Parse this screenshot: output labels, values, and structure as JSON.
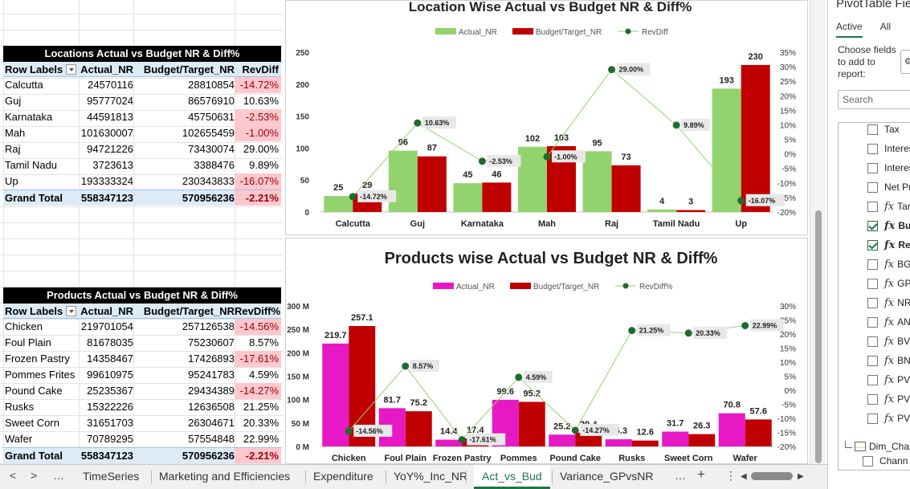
{
  "pivot1": {
    "title": "Locations Actual vs Budget NR & Diff%",
    "headers": {
      "row_labels": "Row Labels",
      "actual": "Actual_NR",
      "budget": "Budget/Target_NR",
      "diff": "RevDiff"
    },
    "rows": [
      {
        "label": "Calcutta",
        "actual": "24570116",
        "budget": "28810854",
        "diff": "-14.72%",
        "neg": true
      },
      {
        "label": "Guj",
        "actual": "95777024",
        "budget": "86576910",
        "diff": "10.63%",
        "neg": false
      },
      {
        "label": "Karnataka",
        "actual": "44591813",
        "budget": "45750631",
        "diff": "-2.53%",
        "neg": true
      },
      {
        "label": "Mah",
        "actual": "101630007",
        "budget": "102655459",
        "diff": "-1.00%",
        "neg": true
      },
      {
        "label": "Raj",
        "actual": "94721226",
        "budget": "73430074",
        "diff": "29.00%",
        "neg": false
      },
      {
        "label": "Tamil Nadu",
        "actual": "3723613",
        "budget": "3388476",
        "diff": "9.89%",
        "neg": false
      },
      {
        "label": "Up",
        "actual": "193333324",
        "budget": "230343833",
        "diff": "-16.07%",
        "neg": true
      }
    ],
    "grand": {
      "label": "Grand Total",
      "actual": "558347123",
      "budget": "570956236",
      "diff": "-2.21%"
    }
  },
  "pivot2": {
    "title": "Products Actual vs Budget NR & Diff%",
    "headers": {
      "row_labels": "Row Labels",
      "actual": "Actual_NR",
      "budget": "Budget/Target_NR",
      "diff": "RevDiff%"
    },
    "rows": [
      {
        "label": "Chicken",
        "actual": "219701054",
        "budget": "257126538",
        "diff": "-14.56%",
        "neg": true
      },
      {
        "label": "Foul Plain",
        "actual": "81678035",
        "budget": "75230607",
        "diff": "8.57%",
        "neg": false
      },
      {
        "label": "Frozen Pastry",
        "actual": "14358467",
        "budget": "17426893",
        "diff": "-17.61%",
        "neg": true
      },
      {
        "label": "Pommes Frites",
        "actual": "99610975",
        "budget": "95241783",
        "diff": "4.59%",
        "neg": false
      },
      {
        "label": "Pound Cake",
        "actual": "25235367",
        "budget": "29434389",
        "diff": "-14.27%",
        "neg": true
      },
      {
        "label": "Rusks",
        "actual": "15322226",
        "budget": "12636508",
        "diff": "21.25%",
        "neg": false
      },
      {
        "label": "Sweet Corn",
        "actual": "31651703",
        "budget": "26304671",
        "diff": "20.33%",
        "neg": false
      },
      {
        "label": "Wafer",
        "actual": "70789295",
        "budget": "57554848",
        "diff": "22.99%",
        "neg": false
      }
    ],
    "grand": {
      "label": "Grand Total",
      "actual": "558347123",
      "budget": "570956236",
      "diff": "-2.21%"
    }
  },
  "chart_data": [
    {
      "type": "bar",
      "title": "Location Wise Actual vs Budget NR & Diff%",
      "categories": [
        "Calcutta",
        "Guj",
        "Karnataka",
        "Mah",
        "Raj",
        "Tamil Nadu",
        "Up"
      ],
      "series": [
        {
          "name": "Actual_NR",
          "values": [
            25,
            96,
            45,
            102,
            95,
            4,
            193
          ],
          "labels": [
            "25",
            "96",
            "45",
            "102",
            "95",
            "4",
            "193"
          ],
          "color": "#92d36e"
        },
        {
          "name": "Budget/Target_NR",
          "values": [
            29,
            87,
            46,
            103,
            73,
            3,
            230
          ],
          "labels": [
            "29",
            "87",
            "46",
            "103",
            "73",
            "3",
            "230"
          ],
          "color": "#c00000"
        },
        {
          "name": "RevDiff",
          "values": [
            -14.72,
            10.63,
            -2.53,
            -1.0,
            29.0,
            9.89,
            -16.07
          ],
          "labels": [
            "-14.72%",
            "10.63%",
            "-2.53%",
            "-1.00%",
            "29.00%",
            "9.89%",
            "-16.07%"
          ],
          "color": "#1e6b30",
          "axis": "secondary"
        }
      ],
      "y_ticks": [
        "0",
        "50",
        "100",
        "150",
        "200",
        "250"
      ],
      "ylim": [
        0,
        250
      ],
      "y2_ticks": [
        "-20%",
        "-15%",
        "-10%",
        "-5%",
        "0%",
        "5%",
        "10%",
        "15%",
        "20%",
        "25%",
        "30%",
        "35%"
      ],
      "y2lim": [
        -20,
        35
      ],
      "legend": "top"
    },
    {
      "type": "bar",
      "title": "Products wise Actual vs Budget NR & Diff%",
      "categories": [
        "Chicken",
        "Foul Plain",
        "Frozen Pastry",
        "Pommes",
        "Pound Cake",
        "Rusks",
        "Sweet Corn",
        "Wafer"
      ],
      "series": [
        {
          "name": "Actual_NR",
          "values": [
            219.7,
            81.7,
            14.4,
            99.6,
            25.2,
            15.3,
            31.7,
            70.8
          ],
          "labels": [
            "219.7",
            "81.7",
            "14.4",
            "99.6",
            "25.2",
            "15.3",
            "31.7",
            "70.8"
          ],
          "color": "#e619c4"
        },
        {
          "name": "Budget/Target_NR",
          "values": [
            257.1,
            75.2,
            17.4,
            95.2,
            29.4,
            12.6,
            26.3,
            57.6
          ],
          "labels": [
            "257.1",
            "75.2",
            "17.4",
            "95.2",
            "29.4",
            "12.6",
            "26.3",
            "57.6"
          ],
          "color": "#c00000"
        },
        {
          "name": "RevDiff%",
          "values": [
            -14.56,
            8.57,
            -17.61,
            4.59,
            -14.27,
            21.25,
            20.33,
            22.99
          ],
          "labels": [
            "-14.56%",
            "8.57%",
            "-17.61%",
            "4.59%",
            "-14.27%",
            "21.25%",
            "20.33%",
            "22.99%"
          ],
          "color": "#1e6b30",
          "axis": "secondary"
        }
      ],
      "y_ticks": [
        "0 M",
        "50 M",
        "100 M",
        "150 M",
        "200 M",
        "250 M",
        "300 M"
      ],
      "ylim": [
        0,
        300
      ],
      "y2_ticks": [
        "-20%",
        "-15%",
        "-10%",
        "-5%",
        "0%",
        "5%",
        "10%",
        "15%",
        "20%",
        "25%",
        "30%"
      ],
      "y2lim": [
        -20,
        30
      ],
      "legend": "top"
    }
  ],
  "panel": {
    "title": "PivotTable Fie",
    "tab_active": "Active",
    "tab_all": "All",
    "choose": "Choose fields to add to report:",
    "gear": "⚙",
    "search_placeholder": "Search",
    "fields": [
      {
        "label": "Tax",
        "checked": false,
        "fx": false,
        "bold": false
      },
      {
        "label": "Interes",
        "checked": false,
        "fx": false,
        "bold": false
      },
      {
        "label": "Interes",
        "checked": false,
        "fx": false,
        "bold": false
      },
      {
        "label": "Net Pr",
        "checked": false,
        "fx": false,
        "bold": false
      },
      {
        "label": "Tar",
        "checked": false,
        "fx": true,
        "bold": false
      },
      {
        "label": "Bu",
        "checked": true,
        "fx": true,
        "bold": true
      },
      {
        "label": "Re",
        "checked": true,
        "fx": true,
        "bold": true
      },
      {
        "label": "BG",
        "checked": false,
        "fx": true,
        "bold": false
      },
      {
        "label": "GP",
        "checked": false,
        "fx": true,
        "bold": false
      },
      {
        "label": "NR",
        "checked": false,
        "fx": true,
        "bold": false
      },
      {
        "label": "AN",
        "checked": false,
        "fx": true,
        "bold": false
      },
      {
        "label": "BV",
        "checked": false,
        "fx": true,
        "bold": false
      },
      {
        "label": "BN",
        "checked": false,
        "fx": true,
        "bold": false
      },
      {
        "label": "PV.",
        "checked": false,
        "fx": true,
        "bold": false
      },
      {
        "label": "PV.",
        "checked": false,
        "fx": true,
        "bold": false
      },
      {
        "label": "PV.",
        "checked": false,
        "fx": true,
        "bold": false
      }
    ],
    "dim_table": "Dim_Chan",
    "dim_field": "Chann"
  },
  "tabbar": {
    "prev": "<",
    "next": ">",
    "more_left": "…",
    "tabs": [
      "TimeSeries",
      "Marketing and Efficiencies",
      "Expenditure",
      "YoY%_Inc_NR",
      "Act_vs_Bud",
      "Variance_GPvsNR"
    ],
    "active_index": 4,
    "more_right": "…",
    "add": "+",
    "options": "⋮"
  }
}
